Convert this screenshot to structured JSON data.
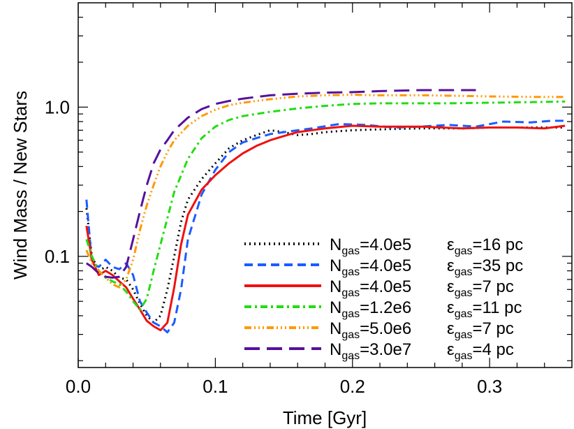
{
  "chart_data": {
    "type": "line",
    "title": "",
    "xlabel": "Time  [Gyr]",
    "ylabel": "Wind Mass / New Stars",
    "xlim": [
      0.0,
      0.36
    ],
    "ylim": [
      0.018,
      5.0
    ],
    "y_scale": "log",
    "x_ticks": [
      {
        "value": 0.0,
        "label": "0.0"
      },
      {
        "value": 0.1,
        "label": "0.1"
      },
      {
        "value": 0.2,
        "label": "0.2"
      },
      {
        "value": 0.3,
        "label": "0.3"
      }
    ],
    "y_ticks": [
      {
        "value": 0.1,
        "label": "0.1"
      },
      {
        "value": 1.0,
        "label": "1.0"
      }
    ],
    "grid": false,
    "legend_position": "bottom-right",
    "series": [
      {
        "name": "N_gas=4.0e5  ε_gas=16 pc",
        "legend": {
          "n_sub": "gas",
          "n_val": "=4.0e5",
          "eps_sub": "gas",
          "eps_val": "=16 pc"
        },
        "color": "#000000",
        "dash": "2,5",
        "width": 3,
        "x": [
          0.006,
          0.01,
          0.015,
          0.02,
          0.025,
          0.03,
          0.035,
          0.04,
          0.045,
          0.05,
          0.055,
          0.06,
          0.065,
          0.07,
          0.075,
          0.08,
          0.09,
          0.1,
          0.11,
          0.12,
          0.13,
          0.14,
          0.15,
          0.16,
          0.17,
          0.18,
          0.2,
          0.22,
          0.25,
          0.28,
          0.3,
          0.32,
          0.34,
          0.355
        ],
        "y": [
          0.21,
          0.1,
          0.08,
          0.085,
          0.08,
          0.072,
          0.07,
          0.06,
          0.048,
          0.04,
          0.036,
          0.04,
          0.06,
          0.1,
          0.17,
          0.24,
          0.33,
          0.42,
          0.53,
          0.6,
          0.65,
          0.7,
          0.68,
          0.65,
          0.66,
          0.68,
          0.7,
          0.71,
          0.72,
          0.72,
          0.73,
          0.73,
          0.73,
          0.73
        ]
      },
      {
        "name": "N_gas=4.0e5  ε_gas=35 pc",
        "legend": {
          "n_sub": "gas",
          "n_val": "=4.0e5",
          "eps_sub": "gas",
          "eps_val": "=35 pc"
        },
        "color": "#1a5cff",
        "dash": "12,7",
        "width": 3,
        "x": [
          0.006,
          0.01,
          0.015,
          0.02,
          0.025,
          0.03,
          0.035,
          0.04,
          0.045,
          0.05,
          0.055,
          0.06,
          0.065,
          0.07,
          0.075,
          0.08,
          0.09,
          0.1,
          0.11,
          0.12,
          0.13,
          0.14,
          0.15,
          0.17,
          0.19,
          0.21,
          0.23,
          0.25,
          0.27,
          0.29,
          0.31,
          0.33,
          0.345,
          0.355
        ],
        "y": [
          0.24,
          0.09,
          0.085,
          0.095,
          0.085,
          0.082,
          0.09,
          0.075,
          0.05,
          0.042,
          0.036,
          0.034,
          0.031,
          0.036,
          0.06,
          0.13,
          0.26,
          0.38,
          0.5,
          0.58,
          0.62,
          0.66,
          0.68,
          0.72,
          0.77,
          0.76,
          0.73,
          0.74,
          0.76,
          0.74,
          0.8,
          0.79,
          0.81,
          0.81
        ]
      },
      {
        "name": "N_gas=4.0e5  ε_gas=7 pc",
        "legend": {
          "n_sub": "gas",
          "n_val": "=4.0e5",
          "eps_sub": "gas",
          "eps_val": "=7 pc"
        },
        "color": "#ee1111",
        "dash": "",
        "width": 3,
        "x": [
          0.006,
          0.01,
          0.015,
          0.02,
          0.025,
          0.03,
          0.035,
          0.04,
          0.045,
          0.05,
          0.055,
          0.06,
          0.065,
          0.07,
          0.075,
          0.08,
          0.09,
          0.1,
          0.11,
          0.12,
          0.13,
          0.14,
          0.15,
          0.16,
          0.18,
          0.2,
          0.22,
          0.25,
          0.28,
          0.3,
          0.32,
          0.34,
          0.355
        ],
        "y": [
          0.16,
          0.095,
          0.075,
          0.08,
          0.075,
          0.068,
          0.062,
          0.052,
          0.044,
          0.037,
          0.034,
          0.032,
          0.036,
          0.062,
          0.12,
          0.19,
          0.28,
          0.35,
          0.42,
          0.49,
          0.55,
          0.6,
          0.64,
          0.68,
          0.72,
          0.75,
          0.74,
          0.74,
          0.72,
          0.73,
          0.73,
          0.72,
          0.75
        ]
      },
      {
        "name": "N_gas=1.2e6  ε_gas=11 pc",
        "legend": {
          "n_sub": "gas",
          "n_val": "=1.2e6",
          "eps_sub": "gas",
          "eps_val": "=11 pc"
        },
        "color": "#22dd11",
        "dash": "10,5,3,5",
        "width": 3,
        "x": [
          0.006,
          0.01,
          0.015,
          0.02,
          0.025,
          0.03,
          0.035,
          0.04,
          0.045,
          0.05,
          0.055,
          0.06,
          0.065,
          0.07,
          0.08,
          0.09,
          0.1,
          0.11,
          0.12,
          0.13,
          0.14,
          0.16,
          0.18,
          0.2,
          0.22,
          0.24,
          0.27,
          0.3,
          0.33,
          0.355
        ],
        "y": [
          0.13,
          0.1,
          0.08,
          0.072,
          0.068,
          0.065,
          0.058,
          0.05,
          0.044,
          0.052,
          0.08,
          0.12,
          0.18,
          0.27,
          0.45,
          0.62,
          0.74,
          0.82,
          0.87,
          0.9,
          0.93,
          0.98,
          1.02,
          1.05,
          1.06,
          1.06,
          1.06,
          1.07,
          1.08,
          1.09
        ]
      },
      {
        "name": "N_gas=5.0e6  ε_gas=7 pc",
        "legend": {
          "n_sub": "gas",
          "n_val": "=5.0e6",
          "eps_sub": "gas",
          "eps_val": "=7 pc"
        },
        "color": "#ff9900",
        "dash": "10,4,2,4,2,4,2,4",
        "width": 3,
        "x": [
          0.006,
          0.01,
          0.015,
          0.02,
          0.025,
          0.03,
          0.035,
          0.04,
          0.045,
          0.05,
          0.055,
          0.06,
          0.065,
          0.07,
          0.08,
          0.09,
          0.1,
          0.11,
          0.12,
          0.13,
          0.14,
          0.16,
          0.18,
          0.2,
          0.22,
          0.25,
          0.28,
          0.3,
          0.33,
          0.355
        ],
        "y": [
          0.11,
          0.09,
          0.08,
          0.072,
          0.065,
          0.062,
          0.07,
          0.095,
          0.15,
          0.22,
          0.3,
          0.4,
          0.5,
          0.6,
          0.75,
          0.87,
          0.96,
          1.03,
          1.07,
          1.1,
          1.13,
          1.18,
          1.2,
          1.21,
          1.2,
          1.2,
          1.19,
          1.18,
          1.17,
          1.17
        ]
      },
      {
        "name": "N_gas=3.0e7  ε_gas=4 pc",
        "legend": {
          "n_sub": "gas",
          "n_val": "=3.0e7",
          "eps_sub": "gas",
          "eps_val": "=4 pc"
        },
        "color": "#55119d",
        "dash": "22,10",
        "width": 3,
        "x": [
          0.006,
          0.01,
          0.015,
          0.02,
          0.025,
          0.03,
          0.035,
          0.04,
          0.045,
          0.05,
          0.055,
          0.06,
          0.065,
          0.07,
          0.08,
          0.09,
          0.1,
          0.11,
          0.12,
          0.13,
          0.14,
          0.16,
          0.18,
          0.2,
          0.22,
          0.25,
          0.28,
          0.29
        ],
        "y": [
          0.09,
          0.085,
          0.077,
          0.073,
          0.072,
          0.073,
          0.085,
          0.13,
          0.2,
          0.3,
          0.42,
          0.52,
          0.6,
          0.7,
          0.85,
          0.97,
          1.05,
          1.1,
          1.14,
          1.17,
          1.2,
          1.23,
          1.25,
          1.26,
          1.28,
          1.3,
          1.3,
          1.3
        ]
      }
    ]
  }
}
